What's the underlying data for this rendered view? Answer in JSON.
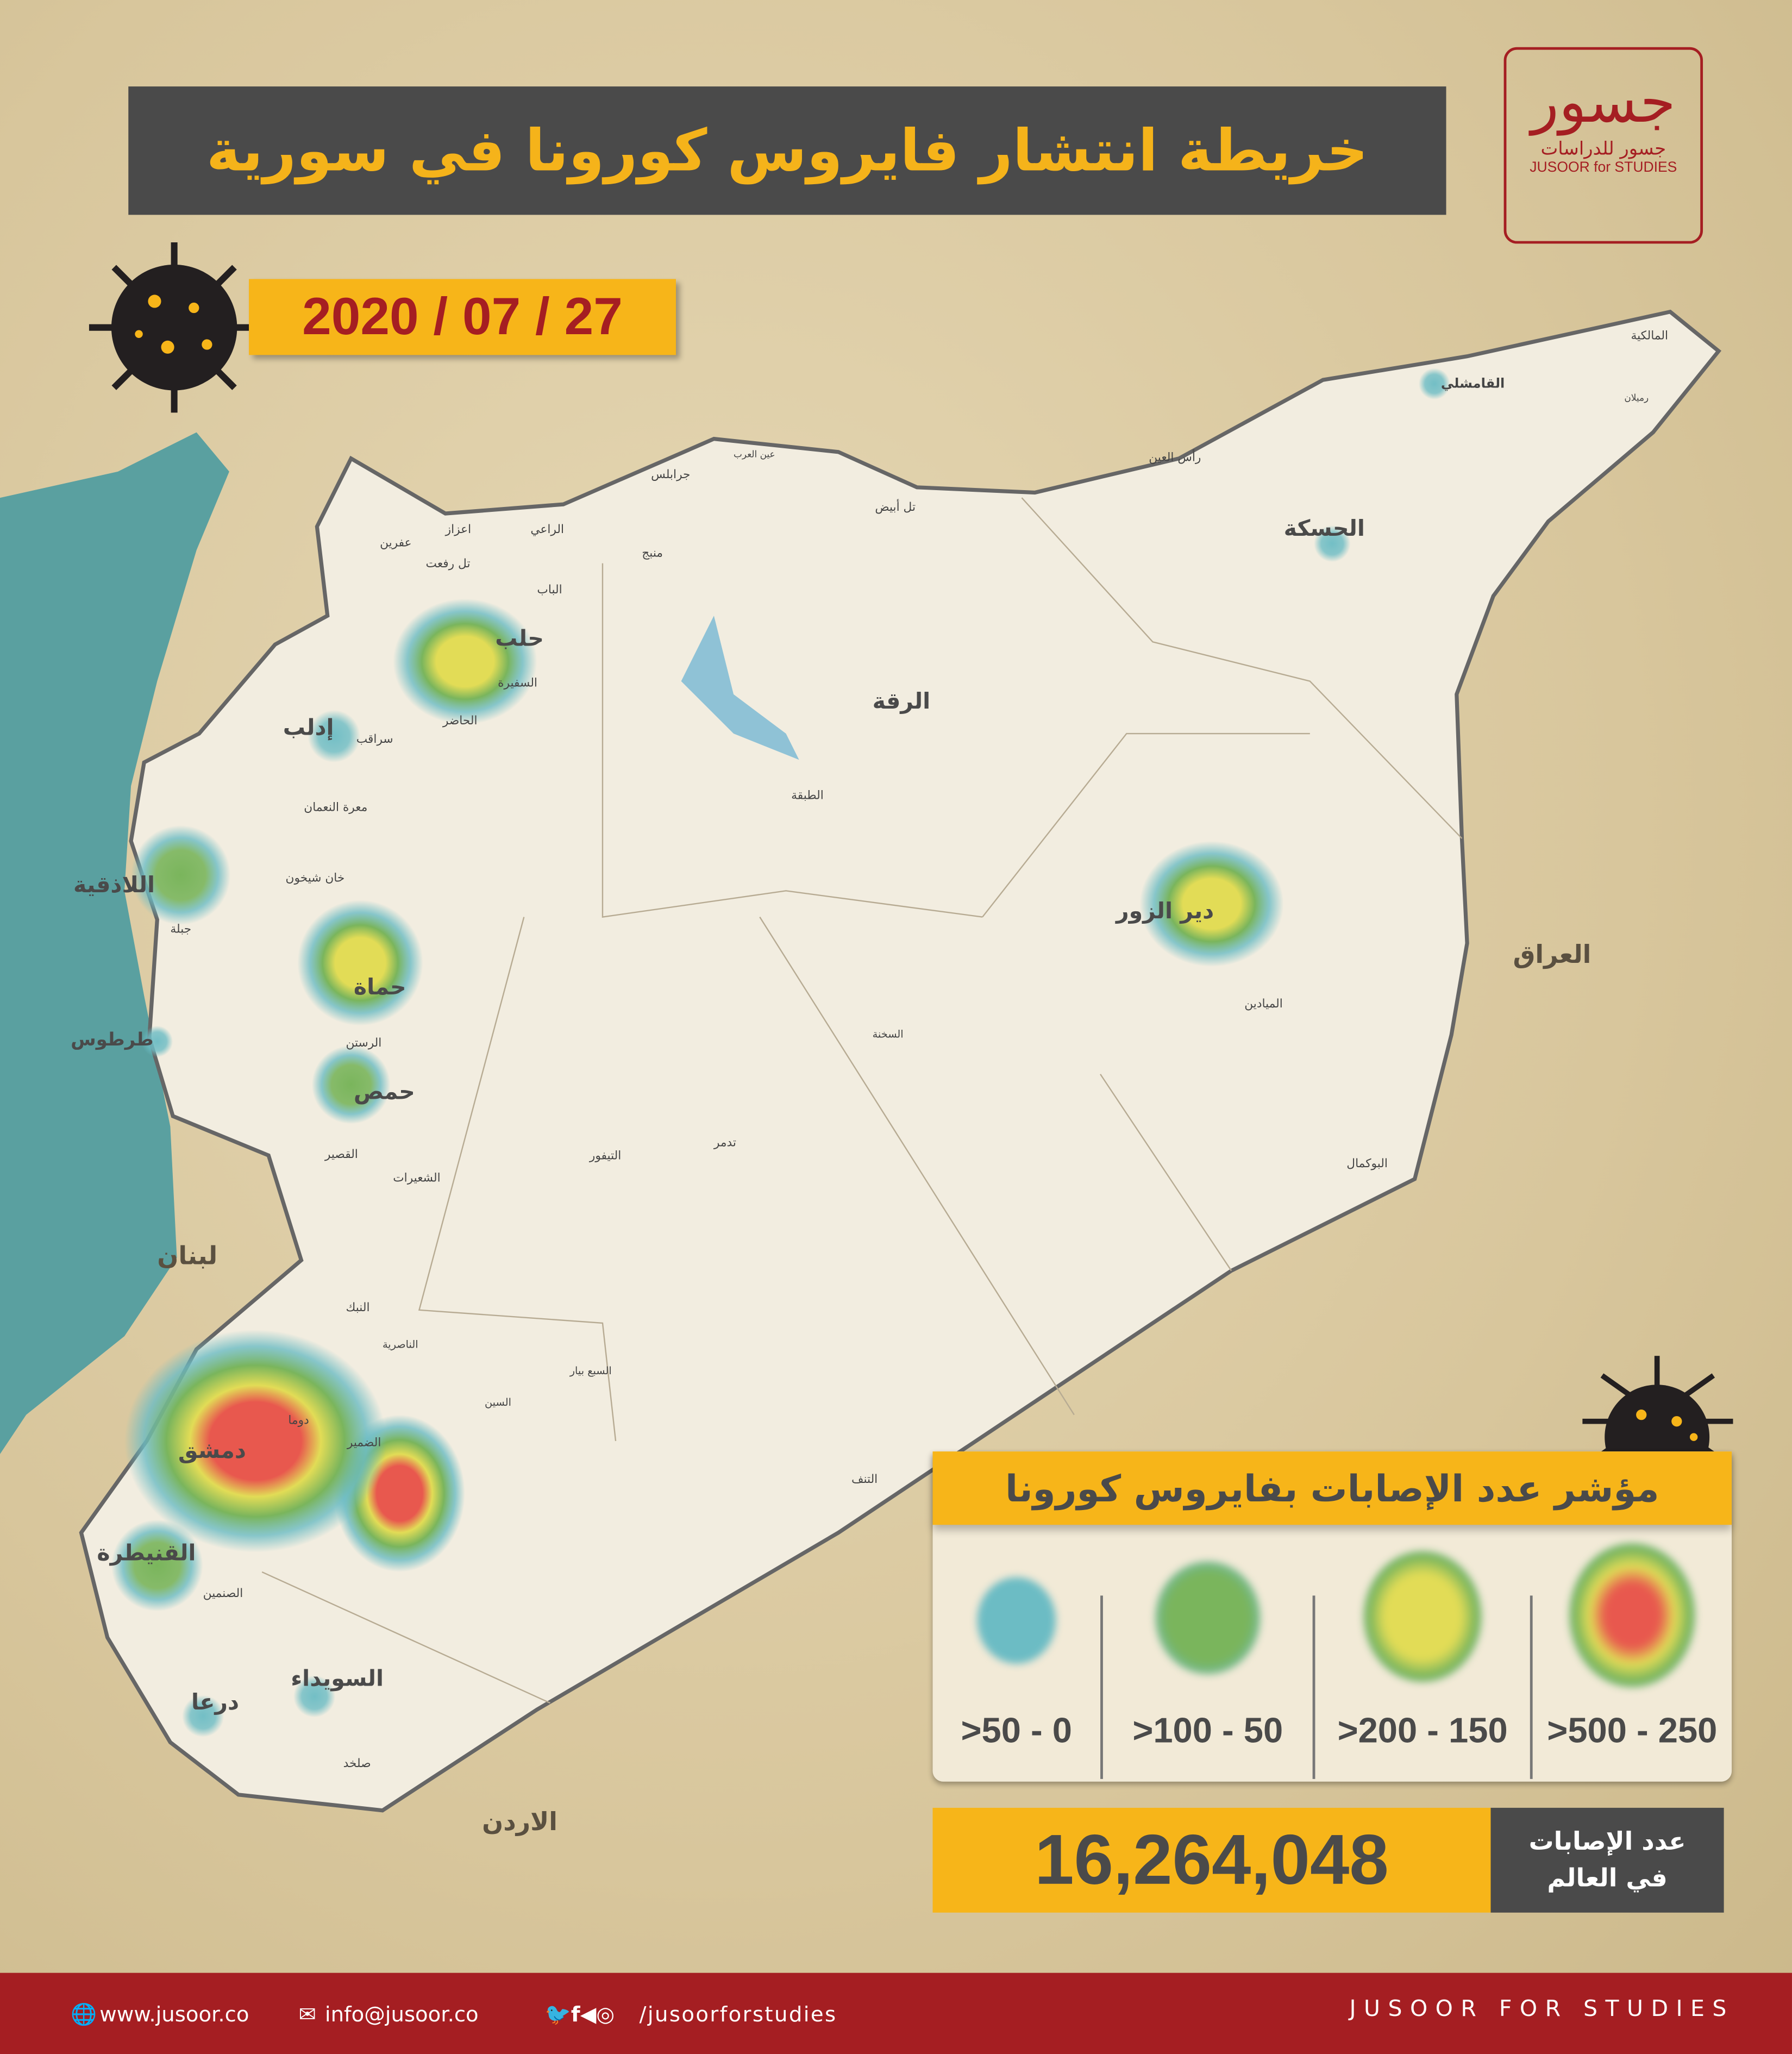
{
  "title": "خريطة انتشار فايروس كورونا في سورية",
  "date": "2020 / 07 / 27",
  "logo": {
    "mark": "جسور",
    "arabic": "جسور للدراسات",
    "english": "JUSOOR for STUDIES"
  },
  "colors": {
    "accent": "#f7b519",
    "brand_red": "#a51e22",
    "dark": "#4a4a4a",
    "sea": "#5aa0a0",
    "land": "#f2ede0"
  },
  "map": {
    "countries": [
      "لبنان",
      "العراق",
      "الاردن"
    ],
    "cities": [
      {
        "name": "حلب",
        "level": "150-200"
      },
      {
        "name": "إدلب",
        "level": "0-50"
      },
      {
        "name": "اللاذقية",
        "level": "50-100"
      },
      {
        "name": "طرطوس",
        "level": "0-50"
      },
      {
        "name": "حماة",
        "level": "150-200"
      },
      {
        "name": "حمص",
        "level": "50-100"
      },
      {
        "name": "دمشق",
        "level": "250-500"
      },
      {
        "name": "القنيطرة",
        "level": "50-100"
      },
      {
        "name": "درعا",
        "level": "0-50"
      },
      {
        "name": "السويداء",
        "level": "0-50"
      },
      {
        "name": "الرقة",
        "level": ""
      },
      {
        "name": "دير الزور",
        "level": "150-200"
      },
      {
        "name": "الحسكة",
        "level": "0-50"
      },
      {
        "name": "القامشلي",
        "level": "0-50"
      }
    ],
    "towns": [
      "عفرين",
      "اعزاز",
      "تل رفعت",
      "الراعي",
      "الباب",
      "منبج",
      "جرابلس",
      "عين العرب",
      "تل أبيض",
      "رأس العين",
      "المالكية",
      "رميلان",
      "الميادين",
      "البوكمال",
      "تدمر",
      "السخنة",
      "التنف",
      "الطبقة",
      "دوما",
      "جبلة",
      "سراقب",
      "معرة النعمان",
      "خان شيخون",
      "الرستن",
      "النبك",
      "الصنمين",
      "صلخد",
      "السفيرة",
      "الحاضر",
      "التيفور",
      "الشعيرات",
      "القصير",
      "الضمير",
      "السبع بيار",
      "السين",
      "الناصرية"
    ]
  },
  "legend": {
    "title": "مؤشر عدد الإصابات بفايروس كورونا",
    "items": [
      {
        "label": ">50 - 0",
        "level": "0-50",
        "color": "#6cbcc4"
      },
      {
        "label": ">100 - 50",
        "level": "50-100",
        "color": "#7ab55c"
      },
      {
        "label": ">200 - 150",
        "level": "150-200",
        "color": "#e2dc56"
      },
      {
        "label": ">500 - 250",
        "level": "250-500",
        "color": "#e8584e"
      }
    ]
  },
  "world": {
    "count": "16,264,048",
    "label_line1": "عدد الإصابات",
    "label_line2": "في العالم"
  },
  "footer": {
    "website": "www.jusoor.co",
    "email": "info@jusoor.co",
    "social": "/jusoorforstudies",
    "brand": "JUSOOR FOR STUDIES"
  }
}
